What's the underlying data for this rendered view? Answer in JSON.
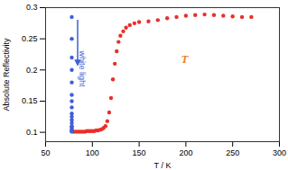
{
  "chart_data": {
    "type": "scatter",
    "x_label": "T / K",
    "y_label": "Absolute Reflectivity",
    "xlim": [
      50,
      300
    ],
    "xticks": [
      50,
      100,
      150,
      200,
      250,
      300
    ],
    "ylim": [
      0.085,
      0.3
    ],
    "yticks": [
      0.1,
      0.15,
      0.2,
      0.25,
      0.3
    ],
    "grid": false,
    "marker": "circle",
    "series": [
      {
        "color": "#e8302a",
        "x": [
          80,
          82,
          84,
          86,
          88,
          90,
          92,
          94,
          96,
          98,
          100,
          102,
          104,
          106,
          108,
          110,
          112,
          114,
          116,
          118,
          120,
          122,
          124,
          126,
          128,
          130,
          133,
          136,
          140,
          145,
          150,
          160,
          170,
          180,
          190,
          200,
          210,
          220,
          230,
          240,
          250,
          260,
          270
        ],
        "values": [
          0.101,
          0.101,
          0.101,
          0.101,
          0.101,
          0.101,
          0.101,
          0.102,
          0.102,
          0.102,
          0.102,
          0.102,
          0.103,
          0.103,
          0.104,
          0.105,
          0.107,
          0.11,
          0.118,
          0.132,
          0.155,
          0.185,
          0.21,
          0.23,
          0.245,
          0.255,
          0.262,
          0.268,
          0.272,
          0.275,
          0.277,
          0.278,
          0.28,
          0.283,
          0.285,
          0.287,
          0.288,
          0.289,
          0.288,
          0.287,
          0.286,
          0.285,
          0.285
        ]
      },
      {
        "color": "#3f5fd6",
        "x": [
          78,
          78,
          78,
          78,
          78,
          78,
          78,
          78,
          78,
          78,
          78,
          78,
          78,
          78,
          78,
          78,
          78,
          78
        ],
        "values": [
          0.285,
          0.25,
          0.22,
          0.2,
          0.18,
          0.16,
          0.15,
          0.14,
          0.13,
          0.125,
          0.12,
          0.115,
          0.11,
          0.108,
          0.105,
          0.103,
          0.102,
          0.101
        ]
      }
    ],
    "annotations": [
      {
        "text": "white light",
        "color": "#3f5fd6"
      },
      {
        "text": "T",
        "color": "#e8822a"
      }
    ]
  }
}
